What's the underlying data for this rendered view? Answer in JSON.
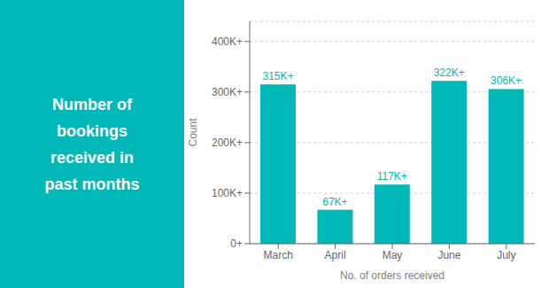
{
  "chart_data": {
    "type": "bar",
    "title": "Number of\nbookings\nreceived in\npast months",
    "categories": [
      "March",
      "April",
      "May",
      "June",
      "July"
    ],
    "values": [
      315000,
      67000,
      117000,
      322000,
      306000
    ],
    "value_labels": [
      "315K+",
      "67K+",
      "117K+",
      "322K+",
      "306K+"
    ],
    "data_labels": true,
    "color": "#00B8B8",
    "xlabel": "No. of orders received",
    "ylabel": "Count",
    "ylim": [
      0,
      440000
    ],
    "yticks": [
      {
        "value": 0,
        "label": "0+"
      },
      {
        "value": 100000,
        "label": "100K+"
      },
      {
        "value": 200000,
        "label": "200K+"
      },
      {
        "value": 300000,
        "label": "300K+"
      },
      {
        "value": 400000,
        "label": "400K+"
      }
    ],
    "grid": true
  }
}
